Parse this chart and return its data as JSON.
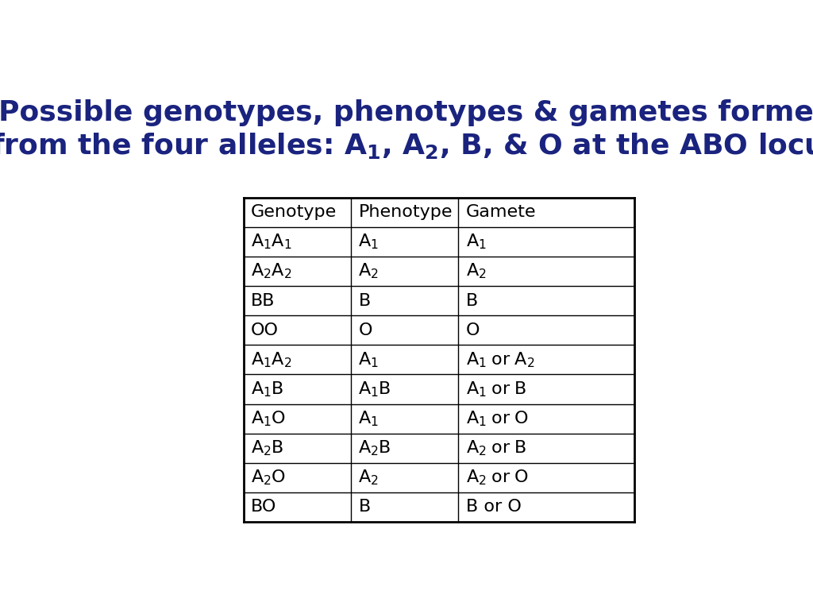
{
  "title_color": "#1a237e",
  "title_fontsize": 26,
  "table_header": [
    "Genotype",
    "Phenotype",
    "Gamete"
  ],
  "table_rows": [
    [
      "A₁A₁",
      "A₁",
      "A₁"
    ],
    [
      "A₂A₂",
      "A₂",
      "A₂"
    ],
    [
      "BB",
      "B",
      "B"
    ],
    [
      "OO",
      "O",
      "O"
    ],
    [
      "A₁A₂",
      "A₁",
      "A₁ or A₂"
    ],
    [
      "A₁B",
      "A₁B",
      "A₁ or B"
    ],
    [
      "A₁O",
      "A₁",
      "A₁ or O"
    ],
    [
      "A₂B",
      "A₂B",
      "A₂ or B"
    ],
    [
      "A₂O",
      "A₂",
      "A₂ or O"
    ],
    [
      "BO",
      "B",
      "B or O"
    ]
  ],
  "bg_color": "#ffffff",
  "text_color": "#000000",
  "line_color": "#000000",
  "cell_fontsize": 16,
  "header_fontsize": 16
}
